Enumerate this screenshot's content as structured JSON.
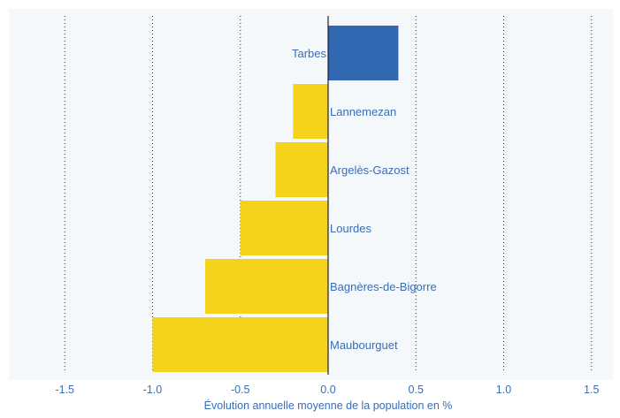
{
  "chart_data": {
    "type": "bar",
    "orientation": "horizontal",
    "xlabel": "Évolution annuelle moyenne de la population en %",
    "xlim": [
      -1.5,
      1.5
    ],
    "xticks": [
      -1.5,
      -1.0,
      -0.5,
      0.0,
      0.5,
      1.0,
      1.5
    ],
    "xtick_labels": [
      "-1.5",
      "-1.0",
      "-0.5",
      "0.0",
      "0.5",
      "1.0",
      "1.5"
    ],
    "grid": "vertical dotted",
    "categories": [
      "Tarbes",
      "Lannemezan",
      "Argelès-Gazost",
      "Lourdes",
      "Bagnères-de-Bigorre",
      "Maubourguet"
    ],
    "values": [
      0.4,
      -0.2,
      -0.3,
      -0.5,
      -0.7,
      -1.0
    ],
    "colors": {
      "highlight": "#3068b2",
      "bar": "#f5d31a",
      "text": "#3a6db5",
      "background": "#f4f8fb",
      "grid": "#333333",
      "zero_line": "#222222"
    },
    "highlight_category": "Tarbes"
  }
}
